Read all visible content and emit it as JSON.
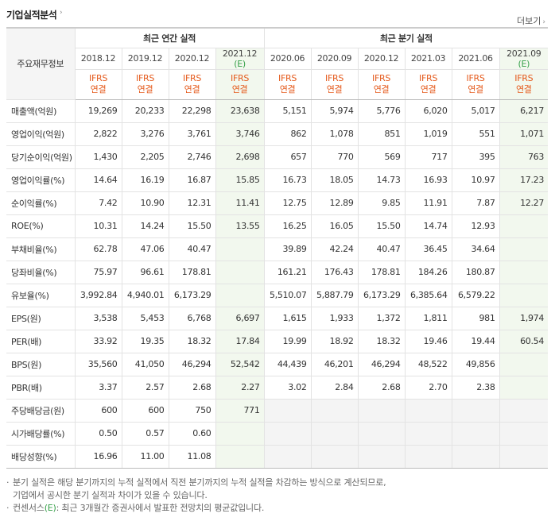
{
  "header": {
    "title": "기업실적분석",
    "more_label": "더보기"
  },
  "table": {
    "row_header": "주요재무정보",
    "group_annual": "최근 연간 실적",
    "group_quarter": "최근 분기 실적",
    "annual_periods": [
      {
        "label": "2018.12",
        "est": ""
      },
      {
        "label": "2019.12",
        "est": ""
      },
      {
        "label": "2020.12",
        "est": ""
      },
      {
        "label": "2021.12",
        "est": "(E)"
      }
    ],
    "quarter_periods": [
      {
        "label": "2020.06",
        "est": ""
      },
      {
        "label": "2020.09",
        "est": ""
      },
      {
        "label": "2020.12",
        "est": ""
      },
      {
        "label": "2021.03",
        "est": ""
      },
      {
        "label": "2021.06",
        "est": ""
      },
      {
        "label": "2021.09",
        "est": "(E)"
      }
    ],
    "basis_line1": "IFRS",
    "basis_line2": "연결",
    "rows": [
      {
        "label": "매출액(억원)",
        "annual": [
          "19,269",
          "20,233",
          "22,298",
          "23,638"
        ],
        "quarter": [
          "5,151",
          "5,974",
          "5,776",
          "6,020",
          "5,017",
          "6,217"
        ]
      },
      {
        "label": "영업이익(억원)",
        "annual": [
          "2,822",
          "3,276",
          "3,761",
          "3,746"
        ],
        "quarter": [
          "862",
          "1,078",
          "851",
          "1,019",
          "551",
          "1,071"
        ]
      },
      {
        "label": "당기순이익(억원)",
        "annual": [
          "1,430",
          "2,205",
          "2,746",
          "2,698"
        ],
        "quarter": [
          "657",
          "770",
          "569",
          "717",
          "395",
          "763"
        ]
      },
      {
        "label": "영업이익률(%)",
        "annual": [
          "14.64",
          "16.19",
          "16.87",
          "15.85"
        ],
        "quarter": [
          "16.73",
          "18.05",
          "14.73",
          "16.93",
          "10.97",
          "17.23"
        ]
      },
      {
        "label": "순이익률(%)",
        "annual": [
          "7.42",
          "10.90",
          "12.31",
          "11.41"
        ],
        "quarter": [
          "12.75",
          "12.89",
          "9.85",
          "11.91",
          "7.87",
          "12.27"
        ]
      },
      {
        "label": "ROE(%)",
        "annual": [
          "10.31",
          "14.24",
          "15.50",
          "13.55"
        ],
        "quarter": [
          "16.25",
          "16.05",
          "15.50",
          "14.74",
          "12.93",
          ""
        ]
      },
      {
        "label": "부채비율(%)",
        "annual": [
          "62.78",
          "47.06",
          "40.47",
          ""
        ],
        "quarter": [
          "39.89",
          "42.24",
          "40.47",
          "36.45",
          "34.64",
          ""
        ]
      },
      {
        "label": "당좌비율(%)",
        "annual": [
          "75.97",
          "96.61",
          "178.81",
          ""
        ],
        "quarter": [
          "161.21",
          "176.43",
          "178.81",
          "184.26",
          "180.87",
          ""
        ]
      },
      {
        "label": "유보율(%)",
        "annual": [
          "3,992.84",
          "4,940.01",
          "6,173.29",
          ""
        ],
        "quarter": [
          "5,510.07",
          "5,887.79",
          "6,173.29",
          "6,385.64",
          "6,579.22",
          ""
        ]
      },
      {
        "label": "EPS(원)",
        "annual": [
          "3,538",
          "5,453",
          "6,768",
          "6,697"
        ],
        "quarter": [
          "1,615",
          "1,933",
          "1,372",
          "1,811",
          "981",
          "1,974"
        ]
      },
      {
        "label": "PER(배)",
        "annual": [
          "33.92",
          "19.35",
          "18.32",
          "17.84"
        ],
        "quarter": [
          "19.99",
          "18.92",
          "18.32",
          "19.46",
          "19.44",
          "60.54"
        ]
      },
      {
        "label": "BPS(원)",
        "annual": [
          "35,560",
          "41,050",
          "46,294",
          "52,542"
        ],
        "quarter": [
          "44,439",
          "46,201",
          "46,294",
          "48,522",
          "49,856",
          ""
        ]
      },
      {
        "label": "PBR(배)",
        "annual": [
          "3.37",
          "2.57",
          "2.68",
          "2.27"
        ],
        "quarter": [
          "3.02",
          "2.84",
          "2.68",
          "2.70",
          "2.38",
          ""
        ]
      },
      {
        "label": "주당배당금(원)",
        "annual": [
          "600",
          "600",
          "750",
          "771"
        ],
        "quarter": [
          "",
          "",
          "",
          "",
          "",
          ""
        ]
      },
      {
        "label": "시가배당률(%)",
        "annual": [
          "0.50",
          "0.57",
          "0.60",
          ""
        ],
        "quarter": [
          "",
          "",
          "",
          "",
          "",
          ""
        ]
      },
      {
        "label": "배당성향(%)",
        "annual": [
          "16.96",
          "11.00",
          "11.08",
          ""
        ],
        "quarter": [
          "",
          "",
          "",
          "",
          "",
          ""
        ]
      }
    ]
  },
  "notes": {
    "line1": "분기 실적은 해당 분기까지의 누적 실적에서 직전 분기까지의 누적 실적을 차감하는 방식으로 계산되므로,",
    "line1_cont": "기업에서 공시한 분기 실적과 차이가 있을 수 있습니다.",
    "line2_prefix": "컨센서스",
    "line2_est": "(E)",
    "line2_suffix": ": 최근 3개월간 증권사에서 발표한 전망치의 평균값입니다."
  }
}
